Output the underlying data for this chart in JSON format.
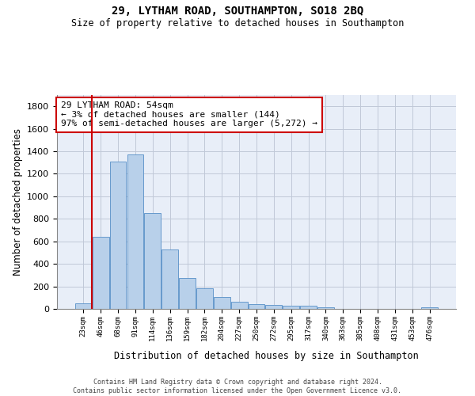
{
  "title1": "29, LYTHAM ROAD, SOUTHAMPTON, SO18 2BQ",
  "title2": "Size of property relative to detached houses in Southampton",
  "xlabel": "Distribution of detached houses by size in Southampton",
  "ylabel": "Number of detached properties",
  "footer1": "Contains HM Land Registry data © Crown copyright and database right 2024.",
  "footer2": "Contains public sector information licensed under the Open Government Licence v3.0.",
  "annotation_title": "29 LYTHAM ROAD: 54sqm",
  "annotation_line1": "← 3% of detached houses are smaller (144)",
  "annotation_line2": "97% of semi-detached houses are larger (5,272) →",
  "bar_color": "#b8d0ea",
  "bar_edge_color": "#6699cc",
  "vline_color": "#cc0000",
  "vline_x": 0.5,
  "annotation_box_color": "#cc0000",
  "categories": [
    "23sqm",
    "46sqm",
    "68sqm",
    "91sqm",
    "114sqm",
    "136sqm",
    "159sqm",
    "182sqm",
    "204sqm",
    "227sqm",
    "250sqm",
    "272sqm",
    "295sqm",
    "317sqm",
    "340sqm",
    "363sqm",
    "385sqm",
    "408sqm",
    "431sqm",
    "453sqm",
    "476sqm"
  ],
  "values": [
    50,
    638,
    1307,
    1370,
    848,
    530,
    275,
    185,
    103,
    65,
    40,
    38,
    30,
    25,
    15,
    0,
    0,
    0,
    0,
    0,
    15
  ],
  "ylim": [
    0,
    1900
  ],
  "yticks": [
    0,
    200,
    400,
    600,
    800,
    1000,
    1200,
    1400,
    1600,
    1800
  ],
  "figsize": [
    6.0,
    5.0
  ],
  "dpi": 100,
  "bg_color": "#e8eef8"
}
